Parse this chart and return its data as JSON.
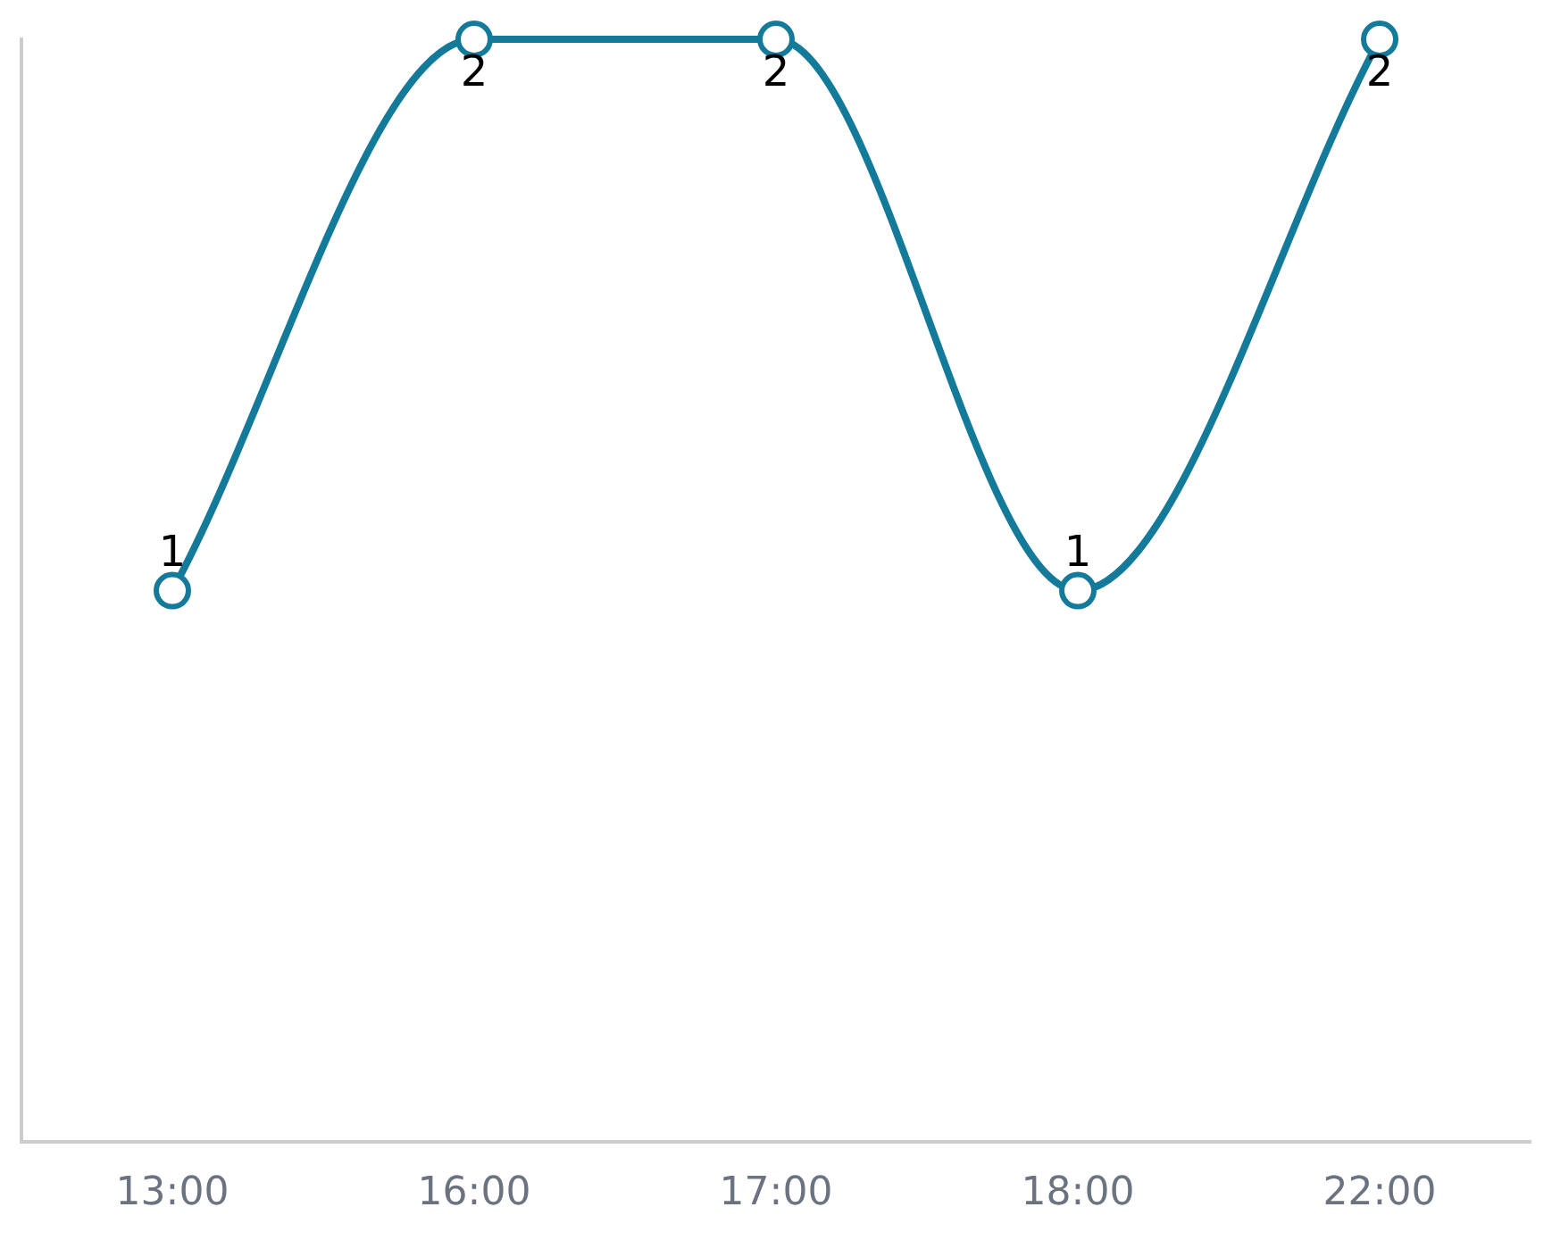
{
  "chart_data": {
    "type": "line",
    "categories": [
      "13:00",
      "16:00",
      "17:00",
      "18:00",
      "22:00"
    ],
    "values": [
      1,
      2,
      2,
      1,
      2
    ],
    "color": "#137a9a",
    "ylim": [
      0,
      2
    ],
    "marker": "circle",
    "line_style": "solid",
    "data_labels": true,
    "tick_labels": "x"
  }
}
